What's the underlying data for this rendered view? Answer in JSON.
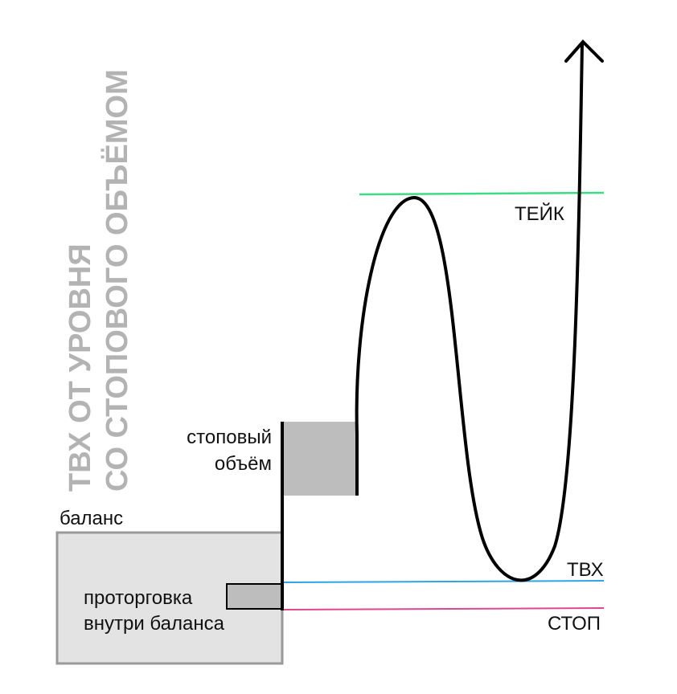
{
  "title_lines": [
    "ТВХ ОТ УРОВНЯ",
    "СО СТОПОВОГО ОБЪЁМОМ"
  ],
  "labels": {
    "balance": "баланс",
    "stop_volume_line1": "стоповый",
    "stop_volume_line2": "объём",
    "consolidation_line1": "проторговка",
    "consolidation_line2": "внутри баланса",
    "take": "ТЕЙК",
    "entry": "ТВХ",
    "stop": "СТОП"
  },
  "colors": {
    "take_line": "#3ddc84",
    "entry_line": "#2fa3e6",
    "stop_line": "#e0458f",
    "balance_fill": "#e3e3e3",
    "balance_border": "#9a9a9a",
    "stop_volume_fill": "#bdbdbd",
    "title_text": "#b3b3b3",
    "price_path": "#000000"
  }
}
